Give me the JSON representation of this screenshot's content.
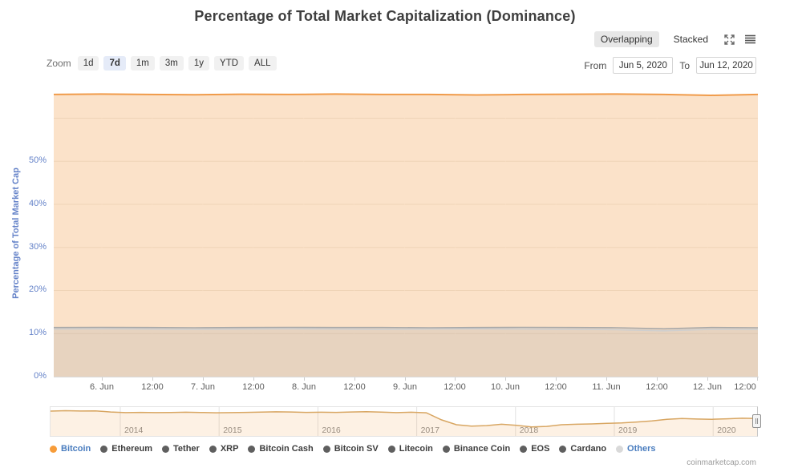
{
  "title": "Percentage of Total Market Capitalization (Dominance)",
  "toolbar": {
    "overlapping_label": "Overlapping",
    "stacked_label": "Stacked",
    "selected_mode": "Overlapping",
    "icons": [
      "fullscreen-icon",
      "context-menu-icon"
    ]
  },
  "zoom_controls": {
    "label": "Zoom",
    "buttons": [
      "1d",
      "7d",
      "1m",
      "3m",
      "1y",
      "YTD",
      "ALL"
    ],
    "selected": "7d"
  },
  "date_range": {
    "from_label": "From",
    "from_value": "Jun 5, 2020",
    "to_label": "To",
    "to_value": "Jun 12, 2020"
  },
  "chart_data": [
    {
      "type": "area",
      "name": "dominance-main-chart",
      "ylabel": "Percentage of Total Market Cap",
      "ylim": [
        0,
        66.6
      ],
      "y_ticks": [
        "0%",
        "10%",
        "20%",
        "30%",
        "40%",
        "50%"
      ],
      "y_tick_values": [
        0,
        10,
        20,
        30,
        40,
        50
      ],
      "grid_values": [
        10,
        20,
        30,
        40,
        50,
        60
      ],
      "x_ticks": [
        "6. Jun",
        "12:00",
        "7. Jun",
        "12:00",
        "8. Jun",
        "12:00",
        "9. Jun",
        "12:00",
        "10. Jun",
        "12:00",
        "11. Jun",
        "12:00",
        "12. Jun",
        "12:00"
      ],
      "x_range": [
        "Jun 5, 2020",
        "Jun 12, 2020 12:00"
      ],
      "legend_position": "bottom",
      "series": [
        {
          "name": "Bitcoin",
          "color": "#f09b4a",
          "fill": "rgba(242,160,76,0.30)",
          "values": [
            65.5,
            65.6,
            65.5,
            65.45,
            65.55,
            65.5,
            65.6,
            65.5,
            65.5,
            65.4,
            65.5,
            65.55,
            65.6,
            65.5,
            65.3,
            65.5
          ]
        },
        {
          "name": "Ethereum",
          "color": "#a8a8a8",
          "fill": "rgba(130,130,130,0.10)",
          "values": [
            11.4,
            11.45,
            11.4,
            11.35,
            11.4,
            11.45,
            11.4,
            11.4,
            11.35,
            11.4,
            11.45,
            11.4,
            11.35,
            11.1,
            11.4,
            11.35
          ]
        },
        {
          "name": "Others",
          "color": "#cfcfcf",
          "fill": "rgba(185,185,185,0.12)",
          "values": [
            11.05,
            11.1,
            11.05,
            11.0,
            11.05,
            11.1,
            11.05,
            11.0,
            11.05,
            11.1,
            11.05,
            11.0,
            10.9,
            10.65,
            11.0,
            10.95
          ]
        }
      ]
    },
    {
      "type": "line",
      "name": "navigator-bitcoin-dominance-history",
      "x_ticks": [
        "2014",
        "2015",
        "2016",
        "2017",
        "2018",
        "2019",
        "2020"
      ],
      "ylim": [
        0,
        100
      ],
      "color": "#d8a662",
      "fill": "rgba(242,160,76,0.15)",
      "values": [
        94,
        95.5,
        94.5,
        95,
        91,
        88.5,
        89.5,
        88.5,
        89,
        90,
        89,
        88,
        88.5,
        89.5,
        90.5,
        91.5,
        91,
        89.5,
        90,
        89.5,
        91,
        92,
        90.5,
        88.5,
        90,
        88,
        62,
        44,
        39,
        41,
        46,
        42,
        36,
        38,
        44,
        46,
        47,
        49,
        51,
        54,
        58,
        64,
        67,
        65,
        64,
        66,
        68,
        67
      ]
    }
  ],
  "legend": {
    "items": [
      {
        "label": "Bitcoin",
        "dot": "#f79c39",
        "text": "#4a7dbf"
      },
      {
        "label": "Ethereum",
        "dot": "#5f5f5f",
        "text": "#3d3d3d"
      },
      {
        "label": "Tether",
        "dot": "#5f5f5f",
        "text": "#3d3d3d"
      },
      {
        "label": "XRP",
        "dot": "#5f5f5f",
        "text": "#3d3d3d"
      },
      {
        "label": "Bitcoin Cash",
        "dot": "#5f5f5f",
        "text": "#3d3d3d"
      },
      {
        "label": "Bitcoin SV",
        "dot": "#5f5f5f",
        "text": "#3d3d3d"
      },
      {
        "label": "Litecoin",
        "dot": "#5f5f5f",
        "text": "#3d3d3d"
      },
      {
        "label": "Binance Coin",
        "dot": "#5f5f5f",
        "text": "#3d3d3d"
      },
      {
        "label": "EOS",
        "dot": "#5f5f5f",
        "text": "#3d3d3d"
      },
      {
        "label": "Cardano",
        "dot": "#5f5f5f",
        "text": "#3d3d3d"
      },
      {
        "label": "Others",
        "dot": "#d9d9d9",
        "text": "#4a7dbf"
      }
    ]
  },
  "credit": "coinmarketcap.com",
  "colors": {
    "accent_orange": "#f09b4a",
    "area_fill": "#fbe6ca",
    "axis_blue": "#6482c8",
    "gray_line": "#a8a8a8",
    "gridline": "#e3dccf",
    "x_label": "#5c5c5c",
    "nav_line": "#d8a662"
  }
}
